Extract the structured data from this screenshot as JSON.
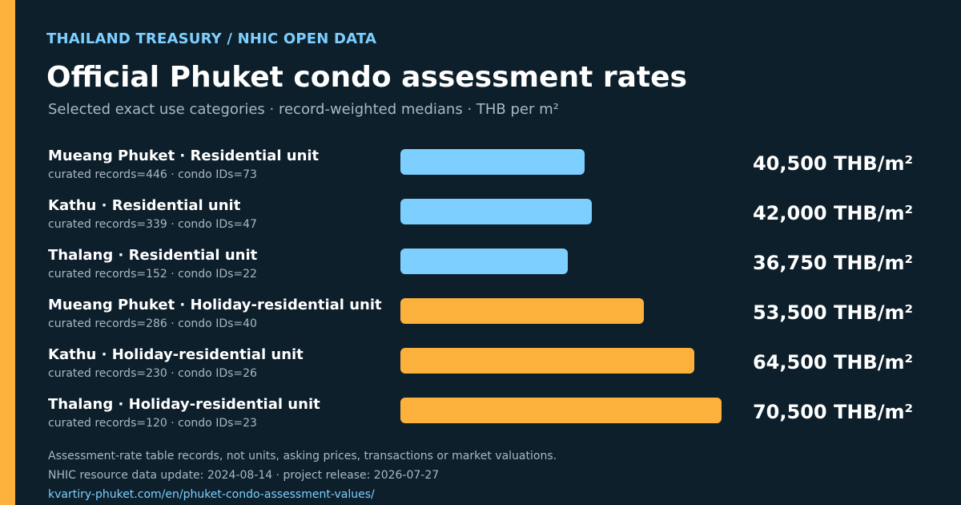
{
  "header": {
    "eyebrow": "THAILAND TREASURY / NHIC OPEN DATA",
    "title": "Official Phuket condo assessment rates",
    "subtitle": "Selected exact use categories · record-weighted medians · THB per m²"
  },
  "colors": {
    "accent": "#fbb13c",
    "residential": "#7dcfff",
    "holiday_residential": "#fbb13c",
    "background": "#0d1f2b"
  },
  "chart_data": {
    "type": "bar",
    "orientation": "horizontal",
    "categories": [
      "Mueang Phuket · Residential unit",
      "Kathu · Residential unit",
      "Thalang · Residential unit",
      "Mueang Phuket · Holiday-residential unit",
      "Kathu · Holiday-residential unit",
      "Thalang · Holiday-residential unit"
    ],
    "values": [
      40500,
      42000,
      36750,
      53500,
      64500,
      70500
    ],
    "value_labels": [
      "40,500 THB/m²",
      "42,000 THB/m²",
      "36,750 THB/m²",
      "53,500 THB/m²",
      "64,500 THB/m²",
      "70,500 THB/m²"
    ],
    "meta": [
      "curated records=446 · condo IDs=73",
      "curated records=339 · condo IDs=47",
      "curated records=152 · condo IDs=22",
      "curated records=286 · condo IDs=40",
      "curated records=230 · condo IDs=26",
      "curated records=120 · condo IDs=23"
    ],
    "color_keys": [
      "residential",
      "residential",
      "residential",
      "holiday_residential",
      "holiday_residential",
      "holiday_residential"
    ],
    "title": "Official Phuket condo assessment rates",
    "xlabel": "",
    "ylabel": "",
    "xlim": [
      0,
      70500
    ],
    "grid": false,
    "legend": "none"
  },
  "footer": {
    "note": "Assessment-rate table records, not units, asking prices, transactions or market valuations.",
    "update": "NHIC resource data update: 2024-08-14 · project release: 2026-07-27",
    "link": "kvartiry-phuket.com/en/phuket-condo-assessment-values/"
  }
}
